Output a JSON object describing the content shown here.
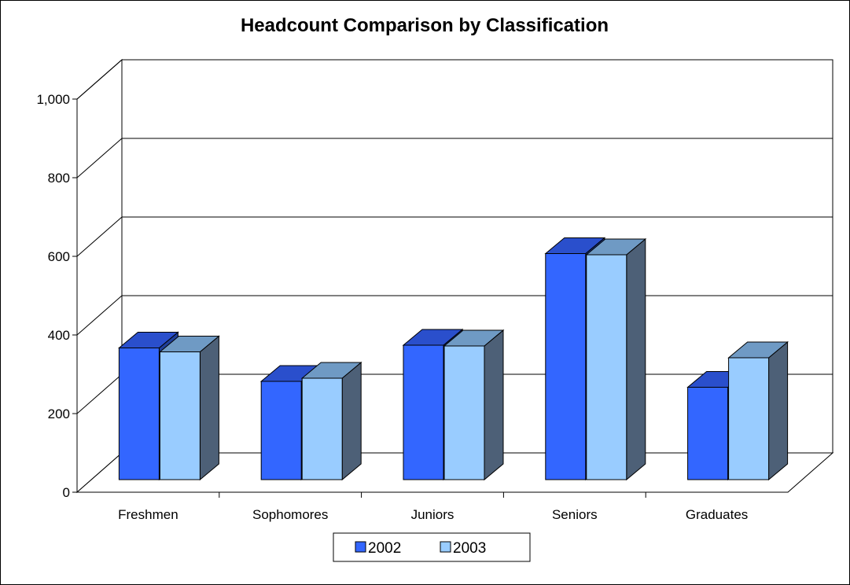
{
  "chart_data": {
    "type": "bar",
    "title": "Headcount Comparison by Classification",
    "categories": [
      "Freshmen",
      "Sophomores",
      "Juniors",
      "Seniors",
      "Graduates"
    ],
    "series": [
      {
        "name": "2002",
        "values": [
          335,
          250,
          342,
          575,
          235
        ]
      },
      {
        "name": "2003",
        "values": [
          325,
          258,
          340,
          572,
          310
        ]
      }
    ],
    "ylim": [
      0,
      1000
    ],
    "yticks": [
      0,
      200,
      400,
      600,
      800,
      1000
    ],
    "ytick_labels": [
      "0",
      "200",
      "400",
      "600",
      "800",
      "1,000"
    ],
    "grid": true,
    "legend_position": "bottom",
    "colors": {
      "2002_front": "#3366ff",
      "2002_top": "#2a4fcc",
      "2002_side": "#1f3f99",
      "2003_front": "#99ccff",
      "2003_top": "#6f9ac4",
      "2003_side": "#4d6077",
      "wall": "#ffffff"
    }
  }
}
